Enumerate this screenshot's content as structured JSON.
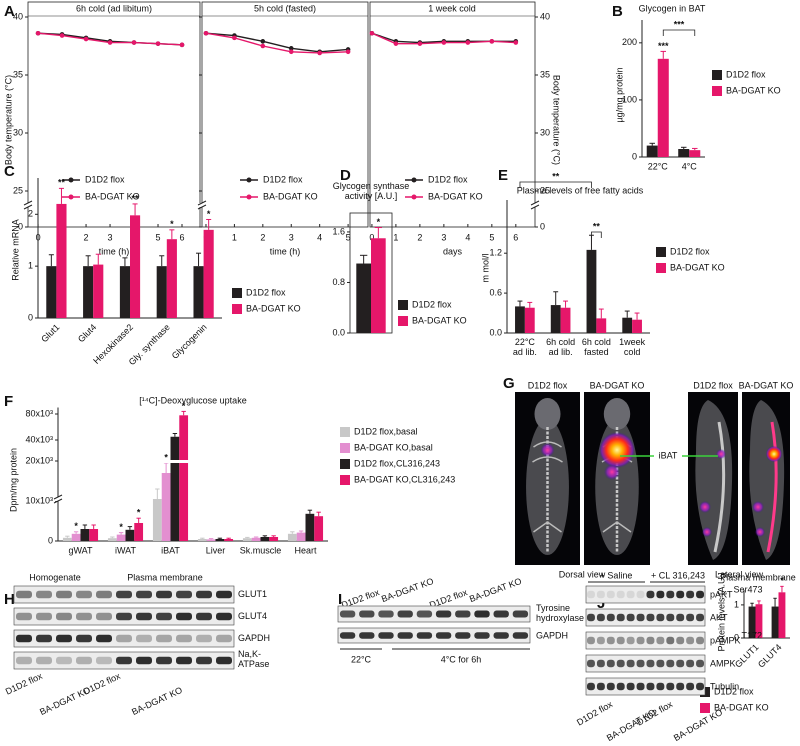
{
  "chart_data": [
    {
      "type": "line",
      "panel": "A",
      "title": "6h cold (ad libitum)",
      "xlabel": "time (h)",
      "ylabel": "Body temperature (°C)",
      "x": [
        0,
        1,
        2,
        3,
        4,
        5,
        6
      ],
      "xlim": [
        -0.42,
        6.75
      ],
      "xticks": [
        0,
        1,
        2,
        3,
        4,
        5,
        6
      ],
      "ylim": [
        0,
        40
      ],
      "yticks": [
        0,
        25,
        30,
        35,
        40
      ],
      "axis_break": true,
      "y_axis": "left",
      "frame": true,
      "series": [
        {
          "name": "D1D2 flox",
          "color": "#231f20",
          "values": [
            38.6,
            38.5,
            38.2,
            37.9,
            37.8,
            37.7,
            37.6
          ]
        },
        {
          "name": "BA-DGAT KO",
          "color": "#e5176a",
          "values": [
            38.6,
            38.4,
            38.1,
            37.8,
            37.8,
            37.7,
            37.6
          ]
        }
      ]
    },
    {
      "type": "line",
      "title": "5h cold (fasted)",
      "xlabel": "time (h)",
      "x": [
        0,
        1,
        2,
        3,
        4,
        5
      ],
      "xlim": [
        -0.14,
        5.7
      ],
      "xticks": [
        0,
        1,
        2,
        3,
        4,
        5
      ],
      "ylim": [
        0,
        40
      ],
      "yticks": [
        0,
        25,
        30,
        35,
        40
      ],
      "axis_break": true,
      "y_axis": "none",
      "frame": true,
      "series": [
        {
          "name": "D1D2 flox",
          "color": "#231f20",
          "values": [
            38.6,
            38.4,
            37.9,
            37.3,
            37.0,
            37.2
          ]
        },
        {
          "name": "BA-DGAT KO",
          "color": "#e5176a",
          "values": [
            38.6,
            38.2,
            37.5,
            37.0,
            36.9,
            37.0
          ]
        }
      ]
    },
    {
      "type": "line",
      "title": "1 week cold",
      "xlabel": "days",
      "ylabel": "Body temperature (°C)",
      "x": [
        0,
        1,
        2,
        3,
        4,
        5,
        6
      ],
      "xlim": [
        -0.08,
        6.8
      ],
      "xticks": [
        0,
        1,
        2,
        3,
        4,
        5,
        6
      ],
      "ylim": [
        0,
        40
      ],
      "yticks": [
        0,
        25,
        30,
        35,
        40
      ],
      "axis_break": true,
      "y_axis": "right",
      "frame": true,
      "series": [
        {
          "name": "D1D2 flox",
          "color": "#231f20",
          "values": [
            38.6,
            37.9,
            37.8,
            37.9,
            37.9,
            37.9,
            37.9
          ]
        },
        {
          "name": "BA-DGAT KO",
          "color": "#e5176a",
          "values": [
            38.6,
            37.7,
            37.7,
            37.8,
            37.8,
            37.9,
            37.8
          ]
        }
      ]
    },
    {
      "type": "bar",
      "panel": "B",
      "title": "Glycogen in BAT",
      "ylabel": "µg/mg protein",
      "categories": [
        "22°C",
        "4°C"
      ],
      "ylim": [
        0,
        240
      ],
      "yticks": [
        0,
        100,
        200
      ],
      "brackets": [
        "***"
      ],
      "series": [
        {
          "name": "D1D2 flox",
          "color": "#231f20",
          "values": [
            20,
            14
          ],
          "errors": [
            4,
            3
          ]
        },
        {
          "name": "BA-DGAT KO",
          "color": "#e5176a",
          "values": [
            172,
            12
          ],
          "errors": [
            13,
            3
          ],
          "significance": [
            "***",
            null
          ]
        }
      ]
    },
    {
      "type": "bar",
      "panel": "C",
      "ylabel": "Relative mRNA",
      "categories": [
        "Glut1",
        "Glut4",
        "Hexokinase2",
        "Gly. synthase",
        "Glycogenin"
      ],
      "ylim": [
        0,
        2.7
      ],
      "yticks": [
        0,
        1,
        2
      ],
      "series": [
        {
          "name": "D1D2 flox",
          "color": "#231f20",
          "values": [
            1,
            1,
            1,
            1,
            1
          ],
          "errors": [
            0.22,
            0.2,
            0.16,
            0.2,
            0.25
          ]
        },
        {
          "name": "BA-DGAT KO",
          "color": "#e5176a",
          "values": [
            2.2,
            1.03,
            1.98,
            1.52,
            1.7
          ],
          "errors": [
            0.3,
            0.2,
            0.22,
            0.18,
            0.2
          ],
          "significance": [
            "**",
            null,
            "**",
            "*",
            "*"
          ]
        }
      ]
    },
    {
      "type": "bar",
      "panel": "D",
      "title": "Glycogen synthase\nactivity [A.U.]",
      "categories": [
        null
      ],
      "ylim": [
        0,
        1.9
      ],
      "yticks": [
        {
          "value": 0,
          "label": "0.0"
        },
        0.8,
        1.6
      ],
      "frame": true,
      "series": [
        {
          "name": "D1D2 flox",
          "color": "#231f20",
          "values": [
            1.1
          ],
          "errors": [
            0.13
          ]
        },
        {
          "name": "BA-DGAT KO",
          "color": "#e5176a",
          "values": [
            1.5
          ],
          "errors": [
            0.17
          ],
          "significance": [
            "*"
          ]
        }
      ]
    },
    {
      "type": "bar",
      "panel": "E",
      "title": "Plasma levels of free fatty acids",
      "ylabel": "m mol/l",
      "categories": [
        "22°C\nad lib.",
        "6h cold\nad lib.",
        "6h cold\nfasted",
        "1week\ncold"
      ],
      "ylim": [
        0,
        2.0
      ],
      "yticks": [
        {
          "value": 0,
          "label": "0.0"
        },
        0.6,
        1.2
      ],
      "brackets": [
        "**",
        "**"
      ],
      "series": [
        {
          "name": "D1D2 flox",
          "color": "#231f20",
          "values": [
            0.4,
            0.42,
            1.25,
            0.23
          ],
          "errors": [
            0.08,
            0.2,
            0.22,
            0.1
          ]
        },
        {
          "name": "BA-DGAT KO",
          "color": "#e5176a",
          "values": [
            0.38,
            0.38,
            0.22,
            0.2
          ],
          "errors": [
            0.08,
            0.1,
            0.14,
            0.1
          ]
        }
      ]
    },
    {
      "type": "bar",
      "panel": "F",
      "title": "[¹⁴C]-Deoxyglucose uptake",
      "ylabel": "Dpm/mg protein",
      "categories": [
        "gWAT",
        "iWAT",
        "iBAT",
        "Liver",
        "Sk.muscle",
        "Heart"
      ],
      "ylim": [
        0,
        90000
      ],
      "axis_break": true,
      "yticks": [
        0,
        {
          "value": 10000,
          "label": "10x10³"
        },
        {
          "value": 20000,
          "label": "20x10³"
        },
        {
          "value": 40000,
          "label": "40x10³"
        },
        {
          "value": 80000,
          "label": "80x10³"
        }
      ],
      "series": [
        {
          "name": "D1D2 flox,basal",
          "color": "#c8c8c8",
          "values": [
            800,
            700,
            10500,
            500,
            700,
            1800
          ],
          "errors": [
            400,
            300,
            2500,
            200,
            200,
            500
          ]
        },
        {
          "name": "BA-DGAT KO,basal",
          "color": "#e38fd0",
          "values": [
            1800,
            1600,
            17000,
            400,
            800,
            2100
          ],
          "errors": [
            500,
            500,
            2500,
            200,
            200,
            400
          ],
          "significance": [
            "*",
            "*",
            "*",
            null,
            null,
            null
          ]
        },
        {
          "name": "D1D2 flox,CL316,243",
          "color": "#231f20",
          "values": [
            3000,
            2800,
            45000,
            500,
            1000,
            6800
          ],
          "errors": [
            1000,
            800,
            5000,
            200,
            300,
            900
          ]
        },
        {
          "name": "BA-DGAT KO,CL316,243",
          "color": "#e5176a",
          "values": [
            3000,
            4500,
            78000,
            500,
            1000,
            6200
          ],
          "errors": [
            1000,
            1200,
            6000,
            200,
            300,
            1000
          ],
          "significance": [
            null,
            "*",
            "*",
            null,
            null,
            null
          ]
        }
      ]
    },
    {
      "type": "bar",
      "title": "Plasma membrane",
      "ylabel": "Protein levels [A.U.]",
      "categories": [
        "GLUT1",
        "GLUT4"
      ],
      "ylim": [
        0,
        1.45
      ],
      "yticks": [
        0,
        1
      ],
      "series": [
        {
          "name": "D1D2 flox",
          "color": "#231f20",
          "values": [
            0.95,
            0.95
          ],
          "errors": [
            0.1,
            0.25
          ]
        },
        {
          "name": "BA-DGAT KO",
          "color": "#e5176a",
          "values": [
            1.02,
            1.38
          ],
          "errors": [
            0.1,
            0.18
          ],
          "significance": [
            null,
            "*"
          ]
        }
      ]
    }
  ],
  "figure_g": {
    "panel": "G",
    "labels": [
      "D1D2 flox",
      "BA-DGAT KO",
      "D1D2 flox",
      "BA-DGAT KO"
    ],
    "callout": "iBAT",
    "views": [
      "Dorsal view",
      "Lateral view"
    ]
  },
  "figure_h": {
    "panel": "H",
    "groups": [
      "Homogenate",
      "Plasma membrane"
    ],
    "rows": [
      "GLUT1",
      "GLUT4",
      "GAPDH",
      "Na,K-\nATPase"
    ],
    "lanes": [
      "D1D2 flox",
      "BA-DGAT KO",
      "D1D2 flox",
      "BA-DGAT KO"
    ]
  },
  "figure_i": {
    "panel": "I",
    "lanes": [
      "D1D2 flox",
      "BA-DGAT KO",
      "D1D2 flox",
      "BA-DGAT KO"
    ],
    "rows": [
      "Tyrosine\nhydroxylase",
      "GAPDH"
    ],
    "conditions": [
      "22°C",
      "4°C for 6h"
    ]
  },
  "figure_j": {
    "panel": "J",
    "treatments": [
      "+ Saline",
      "+ CL 316,243"
    ],
    "rows": [
      {
        "label": "pAKT",
        "sup": "Ser473"
      },
      {
        "label": "AKT"
      },
      {
        "label": "pAMPK",
        "sup": "T172"
      },
      {
        "label": "AMPK"
      },
      {
        "label": "Tubulin"
      }
    ],
    "lanes": [
      "D1D2 flox",
      "BA-DGAT KO",
      "D1D2 flox",
      "BA-DGAT KO"
    ]
  }
}
